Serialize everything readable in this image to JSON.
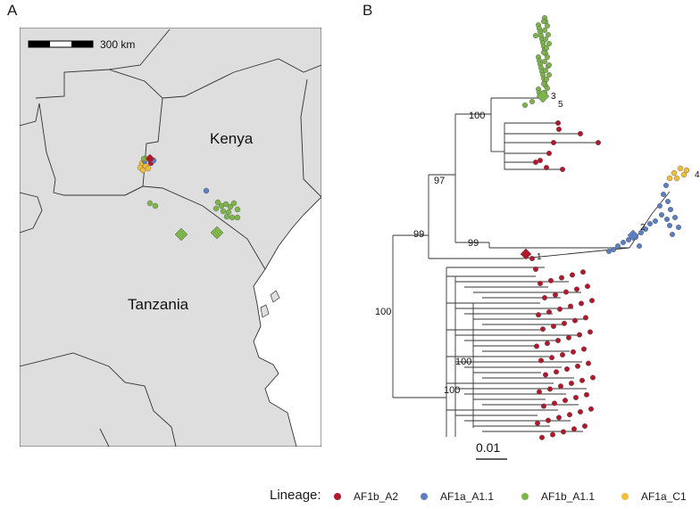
{
  "panels": {
    "a_label": "A",
    "b_label": "B"
  },
  "map": {
    "scale_label": "300 km",
    "countries": [
      "Kenya",
      "Tanzania"
    ],
    "colors": {
      "land": "#dedede",
      "border": "#333333"
    }
  },
  "tree": {
    "scale_label": "0.01",
    "bootstrap": [
      "100",
      "97",
      "99",
      "99",
      "100",
      "100",
      "100"
    ],
    "markers": [
      "1",
      "2",
      "3",
      "4",
      "5"
    ]
  },
  "legend": {
    "title": "Lineage:",
    "items": [
      {
        "label": "AF1b_A2",
        "color": "#b2182b"
      },
      {
        "label": "AF1a_A1.1",
        "color": "#5b7fc2"
      },
      {
        "label": "AF1b_A1.1",
        "color": "#7db54a"
      },
      {
        "label": "AF1a_C1",
        "color": "#f2be3a"
      }
    ]
  }
}
